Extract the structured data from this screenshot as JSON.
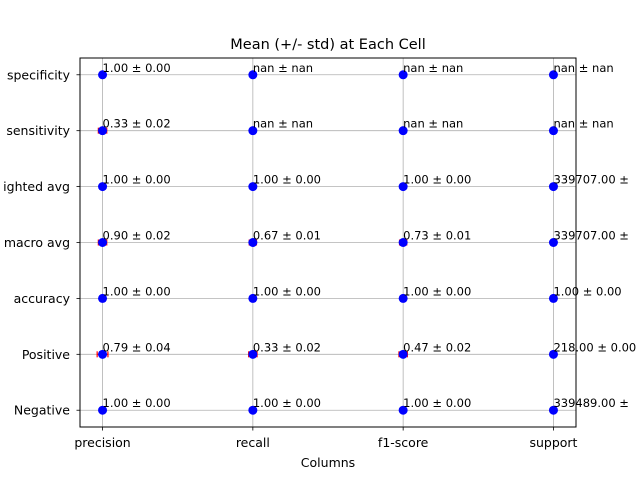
{
  "chart_data": {
    "type": "scatter",
    "title": "Mean (+/- std) at Each Cell",
    "xlabel": "Columns",
    "ylabel": "",
    "grid": true,
    "x_categories": [
      "precision",
      "recall",
      "f1-score",
      "support"
    ],
    "y_categories": [
      "Negative",
      "Positive",
      "accuracy",
      "macro avg",
      "weighted avg",
      "sensitivity",
      "specificity"
    ],
    "y_tick_labels_visible": [
      "Negative",
      "Positive",
      "accuracy",
      "macro avg",
      "ighted avg",
      "sensitivity",
      "specificity"
    ],
    "marker_color": "#0000ff",
    "errorbar_color": "#ff0000",
    "cells": [
      [
        "1.00 ± 0.00",
        "1.00 ± 0.00",
        "1.00 ± 0.00",
        "339489.00 ±"
      ],
      [
        "0.79 ± 0.04",
        "0.33 ± 0.02",
        "0.47 ± 0.02",
        "218.00 ± 0.00"
      ],
      [
        "1.00 ± 0.00",
        "1.00 ± 0.00",
        "1.00 ± 0.00",
        "1.00 ± 0.00"
      ],
      [
        "0.90 ± 0.02",
        "0.67 ± 0.01",
        "0.73 ± 0.01",
        "339707.00 ±"
      ],
      [
        "1.00 ± 0.00",
        "1.00 ± 0.00",
        "1.00 ± 0.00",
        "339707.00 ±"
      ],
      [
        "0.33 ± 0.02",
        "nan ± nan",
        "nan ± nan",
        "nan ± nan"
      ],
      [
        "1.00 ± 0.00",
        "nan ± nan",
        "nan ± nan",
        "nan ± nan"
      ]
    ]
  }
}
